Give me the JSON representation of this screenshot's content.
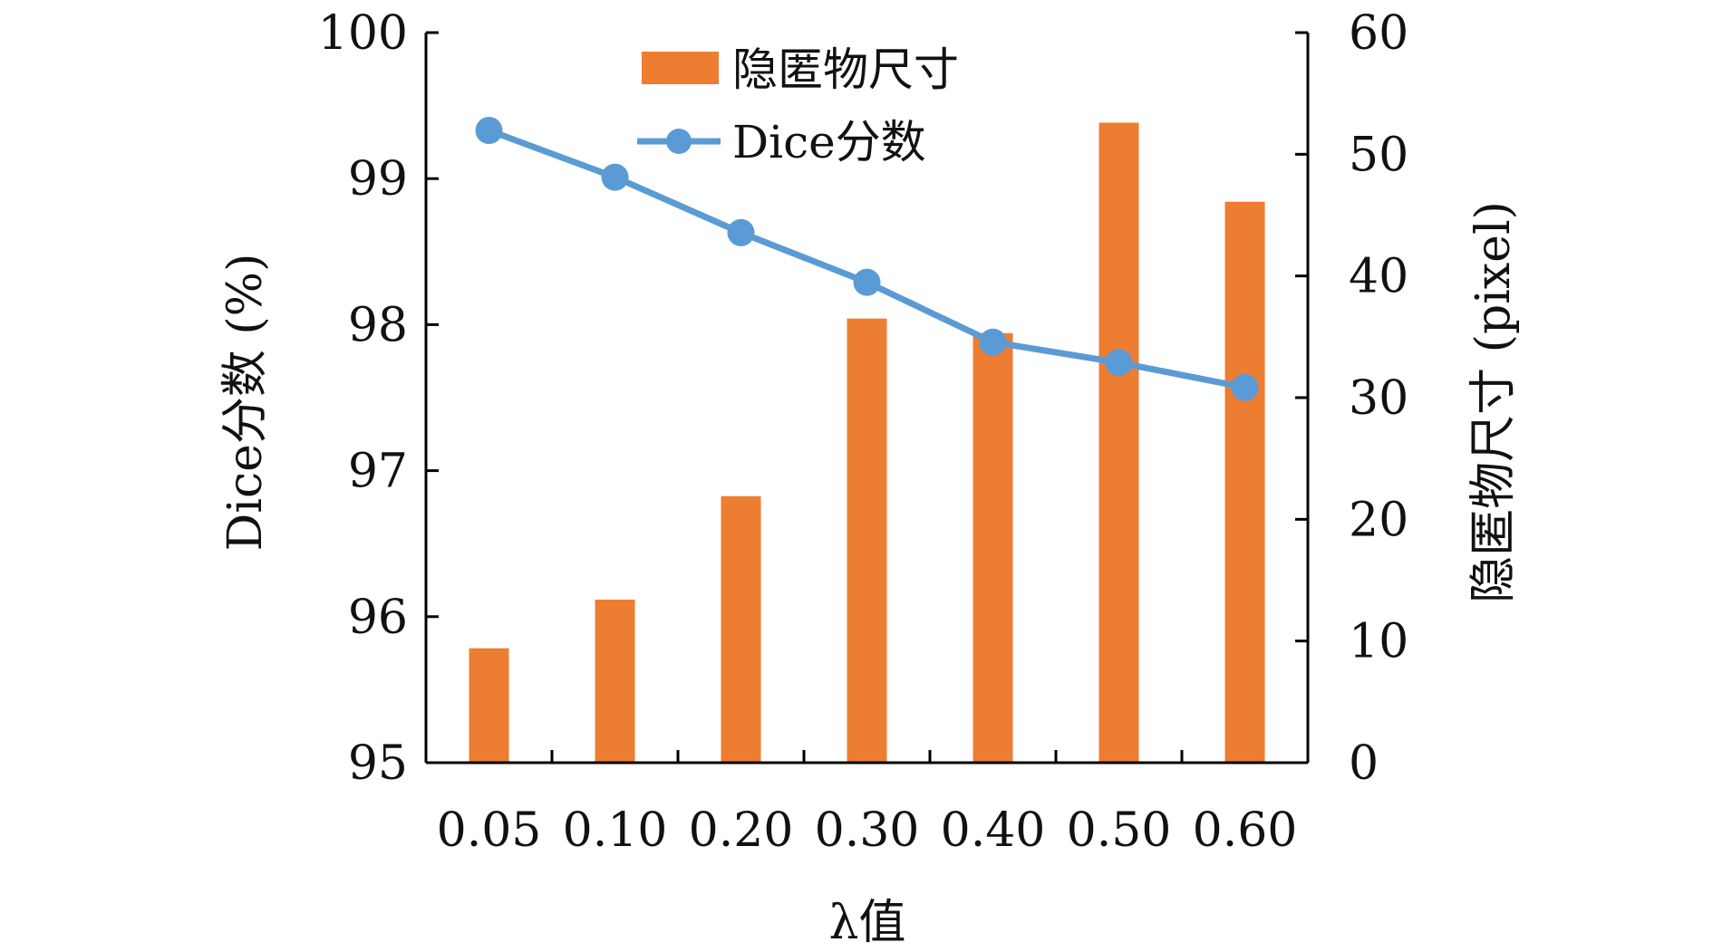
{
  "chart_data": {
    "type": "bar+line",
    "categories": [
      "0.05",
      "0.10",
      "0.20",
      "0.30",
      "0.40",
      "0.50",
      "0.60"
    ],
    "xlabel": "λ值",
    "y_left": {
      "label": "Dice分数 (%)",
      "range": [
        95,
        100
      ],
      "ticks": [
        "95",
        "96",
        "97",
        "98",
        "99",
        "100"
      ]
    },
    "y_right": {
      "label": "隐匿物尺寸 (pixel)",
      "range": [
        0,
        60
      ],
      "ticks": [
        "0",
        "10",
        "20",
        "30",
        "40",
        "50",
        "60"
      ]
    },
    "series": [
      {
        "name": "隐匿物尺寸",
        "type": "bar",
        "axis": "right",
        "color": "#ED7D31",
        "values": [
          9.4,
          13.4,
          21.9,
          36.5,
          35.3,
          52.6,
          46.1
        ]
      },
      {
        "name": "Dice分数",
        "type": "line",
        "axis": "left",
        "color": "#5B9BD5",
        "values": [
          99.33,
          99.01,
          98.63,
          98.29,
          97.88,
          97.74,
          97.57
        ]
      }
    ],
    "legend_position": "top-center",
    "grid": false
  }
}
